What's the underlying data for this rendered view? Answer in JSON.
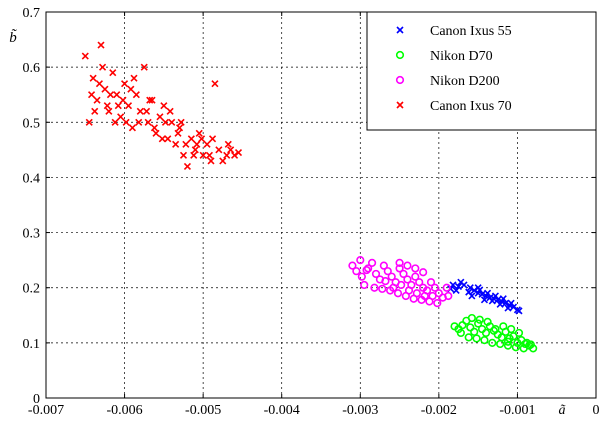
{
  "chart_data": {
    "type": "scatter",
    "title": "",
    "xlabel": "ã",
    "ylabel": "b̃",
    "xlim": [
      -0.007,
      0.0
    ],
    "ylim": [
      0.0,
      0.7
    ],
    "grid": true,
    "legend_position": "top-right",
    "x_ticks": [
      -0.007,
      -0.006,
      -0.005,
      -0.004,
      -0.003,
      -0.002,
      -0.001,
      0
    ],
    "x_tick_labels": [
      "-0.007",
      "-0.006",
      "-0.005",
      "-0.004",
      "-0.003",
      "-0.002",
      "-0.001",
      "0"
    ],
    "y_ticks": [
      0,
      0.1,
      0.2,
      0.3,
      0.4,
      0.5,
      0.6,
      0.7
    ],
    "y_tick_labels": [
      "0",
      "0.1",
      "0.2",
      "0.3",
      "0.4",
      "0.5",
      "0.6",
      "0.7"
    ],
    "series": [
      {
        "name": "Canon Ixus 55",
        "marker": "x",
        "color": "#0000ff",
        "points": [
          [
            -0.00185,
            0.198
          ],
          [
            -0.00175,
            0.202
          ],
          [
            -0.00168,
            0.205
          ],
          [
            -0.0016,
            0.2
          ],
          [
            -0.00155,
            0.195
          ],
          [
            -0.0015,
            0.19
          ],
          [
            -0.00145,
            0.188
          ],
          [
            -0.0014,
            0.185
          ],
          [
            -0.00135,
            0.182
          ],
          [
            -0.0013,
            0.18
          ],
          [
            -0.00125,
            0.178
          ],
          [
            -0.0012,
            0.175
          ],
          [
            -0.00115,
            0.172
          ],
          [
            -0.0011,
            0.168
          ],
          [
            -0.00105,
            0.165
          ],
          [
            -0.001,
            0.16
          ],
          [
            -0.00178,
            0.195
          ],
          [
            -0.00162,
            0.192
          ],
          [
            -0.00148,
            0.196
          ],
          [
            -0.00138,
            0.19
          ],
          [
            -0.00128,
            0.185
          ],
          [
            -0.00118,
            0.18
          ],
          [
            -0.00108,
            0.172
          ],
          [
            -0.00172,
            0.21
          ],
          [
            -0.00158,
            0.185
          ],
          [
            -0.00142,
            0.178
          ],
          [
            -0.00132,
            0.176
          ],
          [
            -0.00122,
            0.17
          ],
          [
            -0.00112,
            0.163
          ],
          [
            -0.00098,
            0.158
          ],
          [
            -0.00182,
            0.205
          ],
          [
            -0.0015,
            0.2
          ]
        ]
      },
      {
        "name": "Nikon D70",
        "marker": "o",
        "color": "#00ff00",
        "points": [
          [
            -0.0018,
            0.13
          ],
          [
            -0.00175,
            0.125
          ],
          [
            -0.0017,
            0.132
          ],
          [
            -0.00165,
            0.14
          ],
          [
            -0.0016,
            0.128
          ],
          [
            -0.00155,
            0.12
          ],
          [
            -0.0015,
            0.135
          ],
          [
            -0.00145,
            0.125
          ],
          [
            -0.0014,
            0.118
          ],
          [
            -0.00135,
            0.13
          ],
          [
            -0.0013,
            0.122
          ],
          [
            -0.00125,
            0.115
          ],
          [
            -0.0012,
            0.11
          ],
          [
            -0.00115,
            0.12
          ],
          [
            -0.0011,
            0.108
          ],
          [
            -0.00105,
            0.112
          ],
          [
            -0.001,
            0.1
          ],
          [
            -0.00095,
            0.105
          ],
          [
            -0.0009,
            0.098
          ],
          [
            -0.00085,
            0.095
          ],
          [
            -0.0008,
            0.09
          ],
          [
            -0.00162,
            0.11
          ],
          [
            -0.00152,
            0.108
          ],
          [
            -0.00142,
            0.105
          ],
          [
            -0.00132,
            0.1
          ],
          [
            -0.00122,
            0.098
          ],
          [
            -0.00112,
            0.095
          ],
          [
            -0.00102,
            0.092
          ],
          [
            -0.00092,
            0.09
          ],
          [
            -0.00158,
            0.145
          ],
          [
            -0.00148,
            0.142
          ],
          [
            -0.00138,
            0.138
          ],
          [
            -0.00128,
            0.125
          ],
          [
            -0.00118,
            0.13
          ],
          [
            -0.00108,
            0.125
          ],
          [
            -0.00098,
            0.118
          ],
          [
            -0.00088,
            0.1
          ],
          [
            -0.00083,
            0.097
          ],
          [
            -0.00172,
            0.118
          ],
          [
            -0.00112,
            0.102
          ]
        ]
      },
      {
        "name": "Nikon D200",
        "marker": "o",
        "color": "#ff00ff",
        "points": [
          [
            -0.0031,
            0.24
          ],
          [
            -0.00305,
            0.23
          ],
          [
            -0.003,
            0.25
          ],
          [
            -0.00298,
            0.22
          ],
          [
            -0.0029,
            0.235
          ],
          [
            -0.00285,
            0.245
          ],
          [
            -0.0028,
            0.225
          ],
          [
            -0.00275,
            0.215
          ],
          [
            -0.0027,
            0.24
          ],
          [
            -0.00265,
            0.23
          ],
          [
            -0.0026,
            0.22
          ],
          [
            -0.00255,
            0.21
          ],
          [
            -0.0025,
            0.235
          ],
          [
            -0.00245,
            0.225
          ],
          [
            -0.0024,
            0.215
          ],
          [
            -0.00235,
            0.205
          ],
          [
            -0.0023,
            0.22
          ],
          [
            -0.00225,
            0.21
          ],
          [
            -0.0022,
            0.2
          ],
          [
            -0.00215,
            0.195
          ],
          [
            -0.0021,
            0.21
          ],
          [
            -0.00205,
            0.2
          ],
          [
            -0.002,
            0.19
          ],
          [
            -0.00195,
            0.182
          ],
          [
            -0.0019,
            0.2
          ],
          [
            -0.00188,
            0.185
          ],
          [
            -0.00295,
            0.205
          ],
          [
            -0.00282,
            0.2
          ],
          [
            -0.00272,
            0.198
          ],
          [
            -0.00262,
            0.195
          ],
          [
            -0.00252,
            0.19
          ],
          [
            -0.00242,
            0.185
          ],
          [
            -0.00232,
            0.18
          ],
          [
            -0.00222,
            0.178
          ],
          [
            -0.00212,
            0.175
          ],
          [
            -0.00202,
            0.172
          ],
          [
            -0.00292,
            0.232
          ],
          [
            -0.00268,
            0.212
          ],
          [
            -0.00258,
            0.2
          ],
          [
            -0.00248,
            0.205
          ],
          [
            -0.00238,
            0.195
          ],
          [
            -0.00228,
            0.19
          ],
          [
            -0.00218,
            0.185
          ],
          [
            -0.00208,
            0.185
          ],
          [
            -0.0025,
            0.245
          ],
          [
            -0.0024,
            0.24
          ],
          [
            -0.0023,
            0.235
          ],
          [
            -0.0022,
            0.228
          ]
        ]
      },
      {
        "name": "Canon Ixus 70",
        "marker": "x",
        "color": "#ff0000",
        "points": [
          [
            -0.0065,
            0.62
          ],
          [
            -0.00645,
            0.5
          ],
          [
            -0.0064,
            0.58
          ],
          [
            -0.00635,
            0.54
          ],
          [
            -0.0063,
            0.64
          ],
          [
            -0.00625,
            0.56
          ],
          [
            -0.0062,
            0.52
          ],
          [
            -0.00615,
            0.59
          ],
          [
            -0.0061,
            0.55
          ],
          [
            -0.00605,
            0.51
          ],
          [
            -0.006,
            0.57
          ],
          [
            -0.00595,
            0.53
          ],
          [
            -0.0059,
            0.49
          ],
          [
            -0.00585,
            0.55
          ],
          [
            -0.0058,
            0.52
          ],
          [
            -0.00575,
            0.6
          ],
          [
            -0.0057,
            0.5
          ],
          [
            -0.00565,
            0.54
          ],
          [
            -0.0056,
            0.48
          ],
          [
            -0.00555,
            0.51
          ],
          [
            -0.0055,
            0.53
          ],
          [
            -0.00545,
            0.47
          ],
          [
            -0.0054,
            0.5
          ],
          [
            -0.00535,
            0.46
          ],
          [
            -0.0053,
            0.49
          ],
          [
            -0.00525,
            0.44
          ],
          [
            -0.0052,
            0.42
          ],
          [
            -0.00515,
            0.47
          ],
          [
            -0.0051,
            0.45
          ],
          [
            -0.00505,
            0.48
          ],
          [
            -0.005,
            0.44
          ],
          [
            -0.00495,
            0.46
          ],
          [
            -0.0049,
            0.43
          ],
          [
            -0.00485,
            0.57
          ],
          [
            -0.0048,
            0.45
          ],
          [
            -0.00475,
            0.43
          ],
          [
            -0.0047,
            0.44
          ],
          [
            -0.00465,
            0.45
          ],
          [
            -0.0046,
            0.44
          ],
          [
            -0.00455,
            0.445
          ],
          [
            -0.00642,
            0.55
          ],
          [
            -0.00632,
            0.57
          ],
          [
            -0.00622,
            0.53
          ],
          [
            -0.00612,
            0.5
          ],
          [
            -0.00602,
            0.54
          ],
          [
            -0.00592,
            0.56
          ],
          [
            -0.00582,
            0.5
          ],
          [
            -0.00572,
            0.52
          ],
          [
            -0.00562,
            0.49
          ],
          [
            -0.00552,
            0.47
          ],
          [
            -0.00542,
            0.52
          ],
          [
            -0.00532,
            0.48
          ],
          [
            -0.00522,
            0.46
          ],
          [
            -0.00512,
            0.44
          ],
          [
            -0.00502,
            0.47
          ],
          [
            -0.00492,
            0.44
          ],
          [
            -0.00628,
            0.6
          ],
          [
            -0.00608,
            0.53
          ],
          [
            -0.00588,
            0.58
          ],
          [
            -0.00568,
            0.54
          ],
          [
            -0.00548,
            0.5
          ],
          [
            -0.00528,
            0.5
          ],
          [
            -0.00508,
            0.46
          ],
          [
            -0.00488,
            0.47
          ],
          [
            -0.00468,
            0.46
          ],
          [
            -0.00638,
            0.52
          ],
          [
            -0.00618,
            0.55
          ],
          [
            -0.00598,
            0.5
          ]
        ]
      }
    ]
  }
}
